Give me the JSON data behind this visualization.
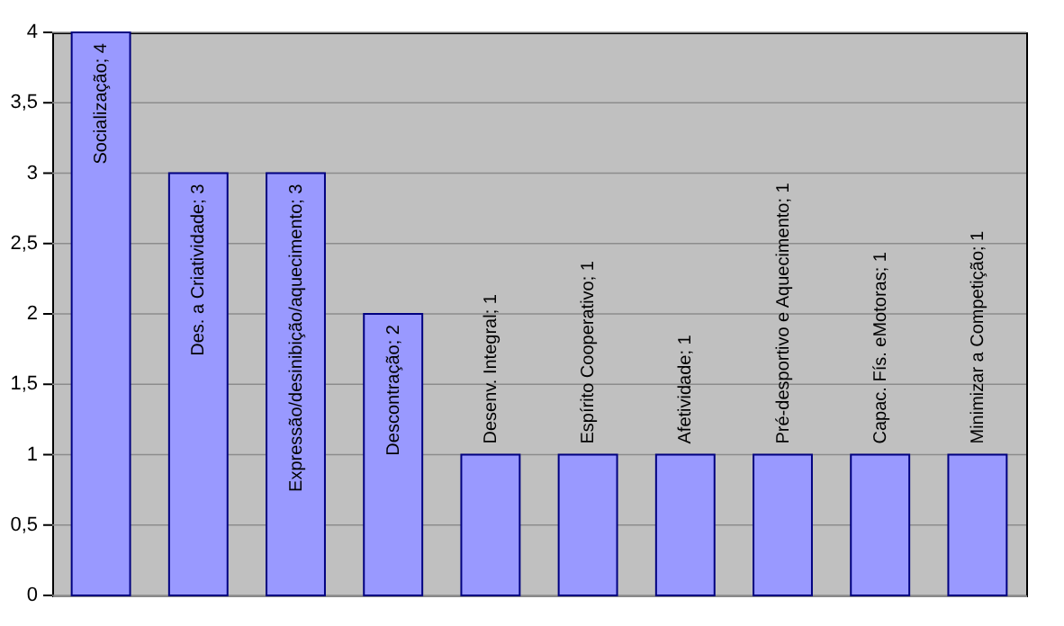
{
  "chart_data": {
    "type": "bar",
    "categories": [
      null,
      null,
      null,
      null,
      null,
      null,
      null,
      null,
      null,
      null
    ],
    "values": [
      4,
      3,
      3,
      2,
      1,
      1,
      1,
      1,
      1,
      1
    ],
    "value_labels": [
      "Socialização; 4",
      "Des. a Criatividade; 3",
      "Expressão/desinibição/aquecimento; 3",
      "Descontração; 2",
      "Desenv. Integral; 1",
      "Espírito Cooperativo; 1",
      "Afetividade; 1",
      "Pré-desportivo e Aquecimento; 1",
      "Capac. Fís. eMotoras; 1",
      "Minimizar a Competição; 1"
    ],
    "color": "#9999ff",
    "ylim": [
      0,
      4
    ],
    "yticks": [
      {
        "value": 0,
        "label": "0"
      },
      {
        "value": 0.5,
        "label": "0,5"
      },
      {
        "value": 1,
        "label": "1"
      },
      {
        "value": 1.5,
        "label": "1,5"
      },
      {
        "value": 2,
        "label": "2"
      },
      {
        "value": 2.5,
        "label": "2,5"
      },
      {
        "value": 3,
        "label": "3"
      },
      {
        "value": 3.5,
        "label": "3,5"
      },
      {
        "value": 4,
        "label": "4"
      }
    ],
    "grid": "y",
    "tick_labels": "y"
  }
}
